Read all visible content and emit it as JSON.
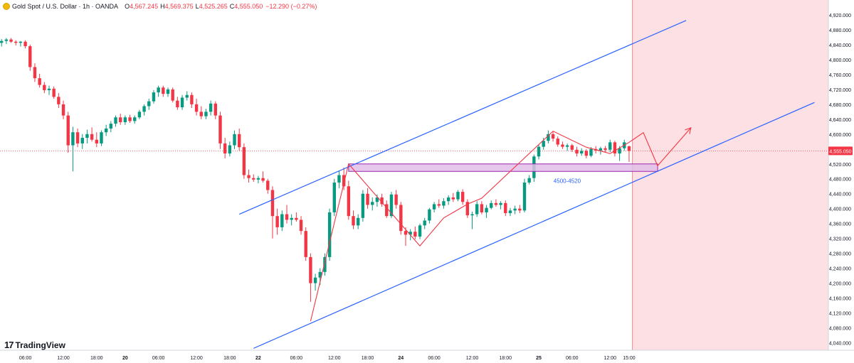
{
  "header": {
    "title": "Gold Spot / U.S. Dollar · 1h · OANDA",
    "open_label": "O",
    "open_value": "4,567.245",
    "high_label": "H",
    "high_value": "4,569.375",
    "low_label": "L",
    "low_value": "4,525.265",
    "close_label": "C",
    "close_value": "4,555.050",
    "change": "−12.290 (−0.27%)"
  },
  "branding": {
    "logo_mark": "17",
    "name": "TradingView"
  },
  "colors": {
    "up": "#089981",
    "down": "#f23645",
    "channel": "#2962ff",
    "pattern": "#f23645",
    "zone_fill": "#e1bee7",
    "zone_stroke": "#9c27b0",
    "forecast_fill": "#fde0e3",
    "price_badge": "#f23645",
    "zone_label": "#2962ff"
  },
  "chart_data": {
    "type": "candlestick",
    "symbol": "Gold Spot / U.S. Dollar",
    "interval": "1h",
    "y_axis": {
      "side": "right",
      "ylim": [
        4020,
        4960
      ],
      "ticks": [
        4920,
        4880,
        4840,
        4800,
        4760,
        4720,
        4680,
        4640,
        4600,
        4560,
        4520,
        4480,
        4440,
        4400,
        4360,
        4320,
        4280,
        4240,
        4200,
        4160,
        4120,
        4080,
        4040
      ],
      "tick_labels": [
        "4,920.000",
        "4,880.000",
        "4,840.000",
        "4,800.000",
        "4,760.000",
        "4,720.000",
        "4,680.000",
        "4,640.000",
        "4,600.000",
        "4,520.000",
        "4,480.000",
        "4,440.000",
        "4,400.000",
        "4,360.000",
        "4,320.000",
        "4,280.000",
        "4,240.000",
        "4,200.000",
        "4,160.000",
        "4,120.000",
        "4,080.000",
        "4,040.000"
      ]
    },
    "x_axis": {
      "tick_labels": [
        {
          "label": "06:00",
          "bar": 5
        },
        {
          "label": "12:00",
          "bar": 13
        },
        {
          "label": "18:00",
          "bar": 20
        },
        {
          "label": "20",
          "bar": 26
        },
        {
          "label": "06:00",
          "bar": 33
        },
        {
          "label": "12:00",
          "bar": 41
        },
        {
          "label": "18:00",
          "bar": 48
        },
        {
          "label": "22",
          "bar": 54
        },
        {
          "label": "06:00",
          "bar": 62
        },
        {
          "label": "12:00",
          "bar": 70
        },
        {
          "label": "18:00",
          "bar": 77
        },
        {
          "label": "24",
          "bar": 84
        },
        {
          "label": "06:00",
          "bar": 91
        },
        {
          "label": "12:00",
          "bar": 99
        },
        {
          "label": "18:00",
          "bar": 106
        },
        {
          "label": "25",
          "bar": 113
        },
        {
          "label": "06:00",
          "bar": 120
        },
        {
          "label": "12:00",
          "bar": 128
        },
        {
          "label": "15:00",
          "bar": 132
        }
      ]
    },
    "last_price": {
      "value": 4555.05,
      "label": "4,555.050"
    },
    "candles": [
      {
        "o": 4845,
        "h": 4855,
        "l": 4835,
        "c": 4850
      },
      {
        "o": 4850,
        "h": 4858,
        "l": 4842,
        "c": 4854
      },
      {
        "o": 4854,
        "h": 4858,
        "l": 4845,
        "c": 4848
      },
      {
        "o": 4848,
        "h": 4852,
        "l": 4838,
        "c": 4845
      },
      {
        "o": 4845,
        "h": 4850,
        "l": 4835,
        "c": 4848
      },
      {
        "o": 4848,
        "h": 4852,
        "l": 4830,
        "c": 4836
      },
      {
        "o": 4836,
        "h": 4840,
        "l": 4770,
        "c": 4780
      },
      {
        "o": 4780,
        "h": 4790,
        "l": 4740,
        "c": 4750
      },
      {
        "o": 4750,
        "h": 4762,
        "l": 4725,
        "c": 4732
      },
      {
        "o": 4732,
        "h": 4740,
        "l": 4710,
        "c": 4718
      },
      {
        "o": 4718,
        "h": 4730,
        "l": 4705,
        "c": 4722
      },
      {
        "o": 4722,
        "h": 4728,
        "l": 4695,
        "c": 4700
      },
      {
        "o": 4700,
        "h": 4710,
        "l": 4670,
        "c": 4680
      },
      {
        "o": 4680,
        "h": 4690,
        "l": 4640,
        "c": 4650
      },
      {
        "o": 4650,
        "h": 4660,
        "l": 4550,
        "c": 4570
      },
      {
        "o": 4570,
        "h": 4620,
        "l": 4500,
        "c": 4605
      },
      {
        "o": 4605,
        "h": 4615,
        "l": 4565,
        "c": 4575
      },
      {
        "o": 4575,
        "h": 4600,
        "l": 4560,
        "c": 4590
      },
      {
        "o": 4590,
        "h": 4612,
        "l": 4575,
        "c": 4600
      },
      {
        "o": 4600,
        "h": 4618,
        "l": 4580,
        "c": 4585
      },
      {
        "o": 4585,
        "h": 4605,
        "l": 4565,
        "c": 4575
      },
      {
        "o": 4575,
        "h": 4610,
        "l": 4568,
        "c": 4605
      },
      {
        "o": 4605,
        "h": 4625,
        "l": 4595,
        "c": 4615
      },
      {
        "o": 4615,
        "h": 4635,
        "l": 4605,
        "c": 4628
      },
      {
        "o": 4628,
        "h": 4650,
        "l": 4620,
        "c": 4645
      },
      {
        "o": 4645,
        "h": 4655,
        "l": 4625,
        "c": 4632
      },
      {
        "o": 4632,
        "h": 4650,
        "l": 4625,
        "c": 4645
      },
      {
        "o": 4645,
        "h": 4652,
        "l": 4630,
        "c": 4635
      },
      {
        "o": 4635,
        "h": 4650,
        "l": 4628,
        "c": 4645
      },
      {
        "o": 4645,
        "h": 4665,
        "l": 4640,
        "c": 4660
      },
      {
        "o": 4660,
        "h": 4680,
        "l": 4650,
        "c": 4675
      },
      {
        "o": 4675,
        "h": 4695,
        "l": 4665,
        "c": 4688
      },
      {
        "o": 4688,
        "h": 4718,
        "l": 4682,
        "c": 4712
      },
      {
        "o": 4712,
        "h": 4730,
        "l": 4700,
        "c": 4725
      },
      {
        "o": 4725,
        "h": 4730,
        "l": 4700,
        "c": 4708
      },
      {
        "o": 4708,
        "h": 4725,
        "l": 4700,
        "c": 4720
      },
      {
        "o": 4720,
        "h": 4725,
        "l": 4685,
        "c": 4690
      },
      {
        "o": 4690,
        "h": 4700,
        "l": 4665,
        "c": 4672
      },
      {
        "o": 4672,
        "h": 4705,
        "l": 4665,
        "c": 4698
      },
      {
        "o": 4698,
        "h": 4715,
        "l": 4690,
        "c": 4705
      },
      {
        "o": 4705,
        "h": 4712,
        "l": 4670,
        "c": 4680
      },
      {
        "o": 4680,
        "h": 4695,
        "l": 4650,
        "c": 4660
      },
      {
        "o": 4660,
        "h": 4675,
        "l": 4640,
        "c": 4648
      },
      {
        "o": 4648,
        "h": 4668,
        "l": 4640,
        "c": 4660
      },
      {
        "o": 4660,
        "h": 4690,
        "l": 4650,
        "c": 4682
      },
      {
        "o": 4682,
        "h": 4688,
        "l": 4640,
        "c": 4650
      },
      {
        "o": 4650,
        "h": 4660,
        "l": 4560,
        "c": 4575
      },
      {
        "o": 4575,
        "h": 4590,
        "l": 4535,
        "c": 4548
      },
      {
        "o": 4548,
        "h": 4580,
        "l": 4540,
        "c": 4570
      },
      {
        "o": 4570,
        "h": 4610,
        "l": 4560,
        "c": 4600
      },
      {
        "o": 4600,
        "h": 4615,
        "l": 4555,
        "c": 4565
      },
      {
        "o": 4565,
        "h": 4575,
        "l": 4480,
        "c": 4490
      },
      {
        "o": 4490,
        "h": 4505,
        "l": 4470,
        "c": 4482
      },
      {
        "o": 4482,
        "h": 4492,
        "l": 4472,
        "c": 4478
      },
      {
        "o": 4478,
        "h": 4488,
        "l": 4468,
        "c": 4482
      },
      {
        "o": 4482,
        "h": 4500,
        "l": 4470,
        "c": 4475
      },
      {
        "o": 4475,
        "h": 4480,
        "l": 4440,
        "c": 4450
      },
      {
        "o": 4450,
        "h": 4460,
        "l": 4320,
        "c": 4380
      },
      {
        "o": 4380,
        "h": 4400,
        "l": 4330,
        "c": 4350
      },
      {
        "o": 4350,
        "h": 4395,
        "l": 4340,
        "c": 4385
      },
      {
        "o": 4385,
        "h": 4410,
        "l": 4360,
        "c": 4370
      },
      {
        "o": 4370,
        "h": 4385,
        "l": 4355,
        "c": 4375
      },
      {
        "o": 4375,
        "h": 4390,
        "l": 4365,
        "c": 4370
      },
      {
        "o": 4370,
        "h": 4380,
        "l": 4330,
        "c": 4340
      },
      {
        "o": 4340,
        "h": 4350,
        "l": 4260,
        "c": 4270
      },
      {
        "o": 4270,
        "h": 4280,
        "l": 4150,
        "c": 4200
      },
      {
        "o": 4200,
        "h": 4225,
        "l": 4180,
        "c": 4215
      },
      {
        "o": 4215,
        "h": 4240,
        "l": 4195,
        "c": 4230
      },
      {
        "o": 4230,
        "h": 4280,
        "l": 4220,
        "c": 4270
      },
      {
        "o": 4270,
        "h": 4400,
        "l": 4260,
        "c": 4390
      },
      {
        "o": 4390,
        "h": 4480,
        "l": 4380,
        "c": 4470
      },
      {
        "o": 4470,
        "h": 4500,
        "l": 4455,
        "c": 4490
      },
      {
        "o": 4490,
        "h": 4510,
        "l": 4450,
        "c": 4460
      },
      {
        "o": 4460,
        "h": 4475,
        "l": 4370,
        "c": 4380
      },
      {
        "o": 4380,
        "h": 4395,
        "l": 4345,
        "c": 4355
      },
      {
        "o": 4355,
        "h": 4385,
        "l": 4345,
        "c": 4375
      },
      {
        "o": 4375,
        "h": 4450,
        "l": 4365,
        "c": 4440
      },
      {
        "o": 4440,
        "h": 4455,
        "l": 4400,
        "c": 4410
      },
      {
        "o": 4410,
        "h": 4430,
        "l": 4395,
        "c": 4418
      },
      {
        "o": 4418,
        "h": 4438,
        "l": 4405,
        "c": 4430
      },
      {
        "o": 4430,
        "h": 4440,
        "l": 4405,
        "c": 4412
      },
      {
        "o": 4412,
        "h": 4422,
        "l": 4375,
        "c": 4380
      },
      {
        "o": 4380,
        "h": 4445,
        "l": 4375,
        "c": 4438
      },
      {
        "o": 4438,
        "h": 4450,
        "l": 4400,
        "c": 4410
      },
      {
        "o": 4410,
        "h": 4418,
        "l": 4330,
        "c": 4340
      },
      {
        "o": 4340,
        "h": 4350,
        "l": 4300,
        "c": 4330
      },
      {
        "o": 4330,
        "h": 4345,
        "l": 4315,
        "c": 4338
      },
      {
        "o": 4338,
        "h": 4352,
        "l": 4318,
        "c": 4325
      },
      {
        "o": 4325,
        "h": 4360,
        "l": 4318,
        "c": 4355
      },
      {
        "o": 4355,
        "h": 4375,
        "l": 4345,
        "c": 4368
      },
      {
        "o": 4368,
        "h": 4402,
        "l": 4360,
        "c": 4398
      },
      {
        "o": 4398,
        "h": 4418,
        "l": 4390,
        "c": 4412
      },
      {
        "o": 4412,
        "h": 4425,
        "l": 4402,
        "c": 4408
      },
      {
        "o": 4408,
        "h": 4428,
        "l": 4400,
        "c": 4420
      },
      {
        "o": 4420,
        "h": 4436,
        "l": 4410,
        "c": 4430
      },
      {
        "o": 4430,
        "h": 4442,
        "l": 4418,
        "c": 4425
      },
      {
        "o": 4425,
        "h": 4450,
        "l": 4420,
        "c": 4445
      },
      {
        "o": 4445,
        "h": 4452,
        "l": 4410,
        "c": 4418
      },
      {
        "o": 4418,
        "h": 4425,
        "l": 4375,
        "c": 4382
      },
      {
        "o": 4382,
        "h": 4392,
        "l": 4345,
        "c": 4385
      },
      {
        "o": 4385,
        "h": 4420,
        "l": 4378,
        "c": 4412
      },
      {
        "o": 4412,
        "h": 4420,
        "l": 4385,
        "c": 4390
      },
      {
        "o": 4390,
        "h": 4410,
        "l": 4375,
        "c": 4402
      },
      {
        "o": 4402,
        "h": 4422,
        "l": 4398,
        "c": 4415
      },
      {
        "o": 4415,
        "h": 4425,
        "l": 4405,
        "c": 4410
      },
      {
        "o": 4410,
        "h": 4420,
        "l": 4398,
        "c": 4415
      },
      {
        "o": 4415,
        "h": 4422,
        "l": 4380,
        "c": 4388
      },
      {
        "o": 4388,
        "h": 4402,
        "l": 4380,
        "c": 4395
      },
      {
        "o": 4395,
        "h": 4408,
        "l": 4385,
        "c": 4400
      },
      {
        "o": 4400,
        "h": 4410,
        "l": 4388,
        "c": 4395
      },
      {
        "o": 4395,
        "h": 4480,
        "l": 4390,
        "c": 4470
      },
      {
        "o": 4470,
        "h": 4490,
        "l": 4465,
        "c": 4482
      },
      {
        "o": 4482,
        "h": 4545,
        "l": 4472,
        "c": 4540
      },
      {
        "o": 4540,
        "h": 4572,
        "l": 4532,
        "c": 4566
      },
      {
        "o": 4566,
        "h": 4590,
        "l": 4558,
        "c": 4582
      },
      {
        "o": 4582,
        "h": 4610,
        "l": 4575,
        "c": 4600
      },
      {
        "o": 4600,
        "h": 4606,
        "l": 4580,
        "c": 4588
      },
      {
        "o": 4588,
        "h": 4594,
        "l": 4566,
        "c": 4572
      },
      {
        "o": 4572,
        "h": 4580,
        "l": 4560,
        "c": 4566
      },
      {
        "o": 4566,
        "h": 4575,
        "l": 4555,
        "c": 4570
      },
      {
        "o": 4570,
        "h": 4574,
        "l": 4552,
        "c": 4558
      },
      {
        "o": 4558,
        "h": 4566,
        "l": 4540,
        "c": 4548
      },
      {
        "o": 4548,
        "h": 4562,
        "l": 4542,
        "c": 4555
      },
      {
        "o": 4555,
        "h": 4560,
        "l": 4535,
        "c": 4542
      },
      {
        "o": 4542,
        "h": 4565,
        "l": 4538,
        "c": 4560
      },
      {
        "o": 4560,
        "h": 4568,
        "l": 4548,
        "c": 4556
      },
      {
        "o": 4556,
        "h": 4566,
        "l": 4545,
        "c": 4562
      },
      {
        "o": 4562,
        "h": 4568,
        "l": 4550,
        "c": 4558
      },
      {
        "o": 4558,
        "h": 4585,
        "l": 4552,
        "c": 4578
      },
      {
        "o": 4578,
        "h": 4582,
        "l": 4540,
        "c": 4548
      },
      {
        "o": 4548,
        "h": 4568,
        "l": 4528,
        "c": 4562
      },
      {
        "o": 4562,
        "h": 4585,
        "l": 4556,
        "c": 4578
      },
      {
        "o": 4567.245,
        "h": 4569.375,
        "l": 4525.265,
        "c": 4555.05
      }
    ],
    "annotations": {
      "zone": {
        "from_bar": 73,
        "to_bar": 138,
        "low": 4500,
        "high": 4520,
        "label": "4500-4520"
      },
      "channel_upper": [
        {
          "bar": 50,
          "price": 4385
        },
        {
          "bar": 144,
          "price": 4905
        }
      ],
      "channel_lower": [
        {
          "bar": 53,
          "price": 4025
        },
        {
          "bar": 171,
          "price": 4685
        }
      ],
      "pattern_path": [
        {
          "bar": 65,
          "price": 4098
        },
        {
          "bar": 73,
          "price": 4520
        },
        {
          "bar": 88,
          "price": 4300
        },
        {
          "bar": 93,
          "price": 4375
        },
        {
          "bar": 98,
          "price": 4412
        },
        {
          "bar": 101,
          "price": 4428
        },
        {
          "bar": 116,
          "price": 4608
        },
        {
          "bar": 123,
          "price": 4565
        },
        {
          "bar": 128,
          "price": 4548
        },
        {
          "bar": 132,
          "price": 4578
        },
        {
          "bar": 135,
          "price": 4604
        },
        {
          "bar": 138,
          "price": 4515
        },
        {
          "bar": 145,
          "price": 4617
        }
      ],
      "forecast_region": {
        "from_bar": 133
      }
    }
  }
}
